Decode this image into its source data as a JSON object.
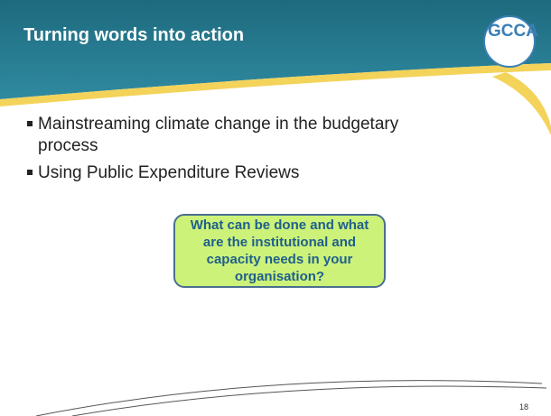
{
  "header": {
    "title": "Turning words into action",
    "logo": "GCCA"
  },
  "bullets": [
    "Mainstreaming climate change in the budgetary process",
    "Using Public Expenditure Reviews"
  ],
  "callout": "What can be done and what are the institutional and capacity needs in your organisation?",
  "page_number": "18"
}
